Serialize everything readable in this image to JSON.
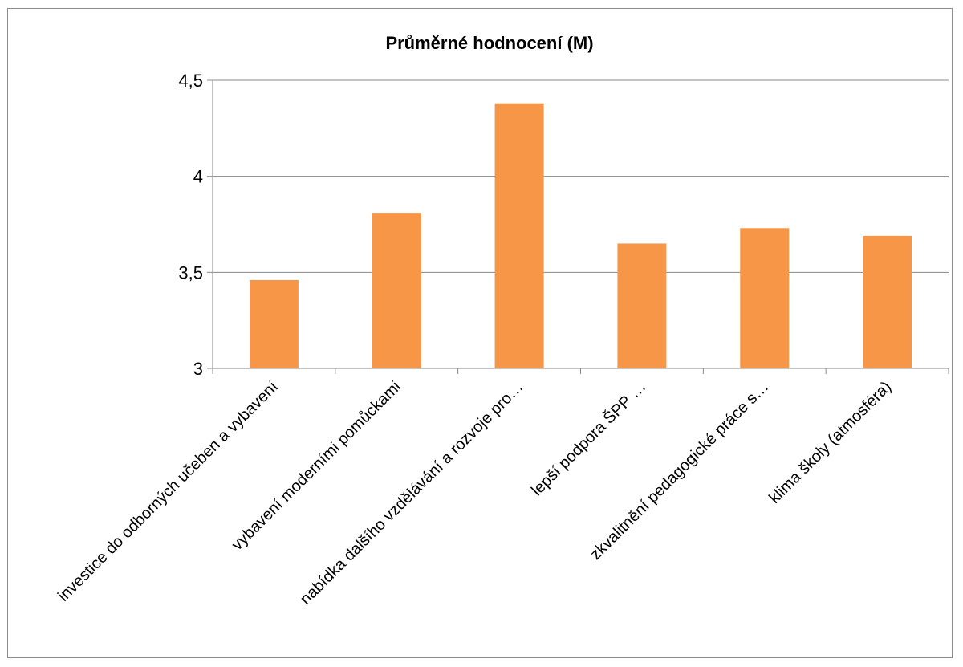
{
  "chart_data": {
    "type": "bar",
    "title": "Průměrné hodnocení (M)",
    "xlabel": "",
    "ylabel": "",
    "categories": [
      "investice do odborných učeben a vybavení",
      "vybavení moderními pomůckami",
      "nabídka dalšího vzdělávání a rozvoje pro…",
      "lepší podpora ŠPP …",
      "zkvalitnění pedagogické práce s…",
      "klima školy (atmosféra)"
    ],
    "values": [
      3.46,
      3.81,
      4.38,
      3.65,
      3.73,
      3.69
    ],
    "ylim": [
      3,
      4.5
    ],
    "yticks": [
      3,
      3.5,
      4,
      4.5
    ],
    "ytick_labels": [
      "3",
      "3,5",
      "4",
      "4,5"
    ],
    "grid": true,
    "legend": "none",
    "colors": {
      "bar": "#f79646",
      "grid": "#888888",
      "axis": "#888888"
    }
  }
}
